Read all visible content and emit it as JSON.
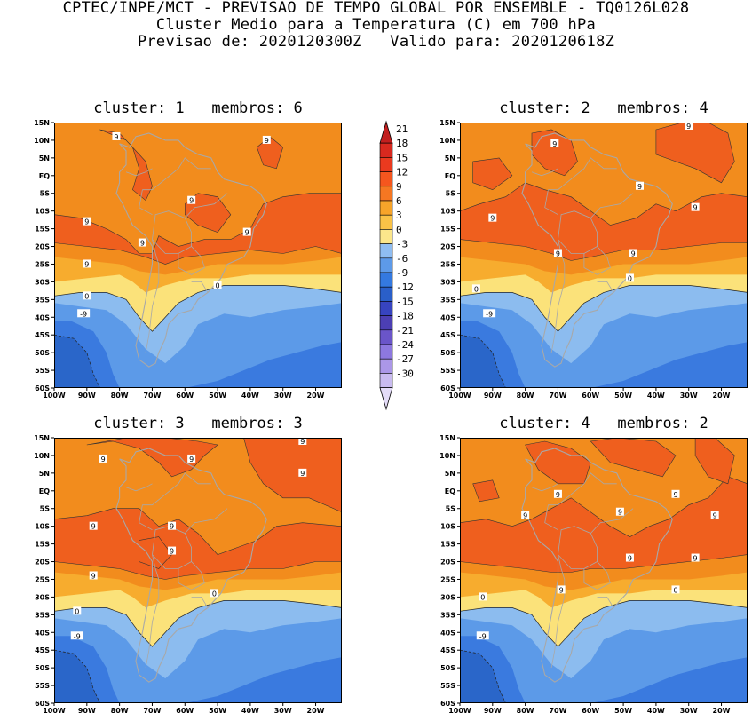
{
  "header": {
    "line1": "CPTEC/INPE/MCT - PREVISAO DE TEMPO GLOBAL POR ENSEMBLE - TQ0126L028",
    "line2": "Cluster Medio para a Temperatura (C) em 700 hPa",
    "line3": "Previsao de: 2020120300Z   Valido para: 2020120618Z"
  },
  "axes": {
    "lon_ticks": [
      "100W",
      "90W",
      "80W",
      "70W",
      "60W",
      "50W",
      "40W",
      "30W",
      "20W"
    ],
    "lat_ticks": [
      "15N",
      "10N",
      "5N",
      "EQ",
      "5S",
      "10S",
      "15S",
      "20S",
      "25S",
      "30S",
      "35S",
      "40S",
      "45S",
      "50S",
      "55S",
      "60S"
    ]
  },
  "colorbar": {
    "labels": [
      "21",
      "18",
      "15",
      "12",
      "9",
      "6",
      "3",
      "0",
      "-3",
      "-6",
      "-9",
      "-12",
      "-15",
      "-18",
      "-21",
      "-24",
      "-27",
      "-30"
    ],
    "colors": [
      "#c21f1f",
      "#d8291f",
      "#ea3a1f",
      "#f5561e",
      "#f57722",
      "#f7a42a",
      "#f9c247",
      "#fbe68b",
      "#8fbdf2",
      "#5d9ae9",
      "#3479e0",
      "#2a5fc9",
      "#3744c0",
      "#4c3fb3",
      "#6a55c9",
      "#8d78df",
      "#ab97e8",
      "#c9bbf0",
      "#e4dcf8"
    ],
    "level_colors": {
      "gt9": "#ef5f1e",
      "6_9": "#f28c1d",
      "3_6": "#f7ac2e",
      "0_3": "#fbe27a",
      "m3_0": "#8cbcef",
      "m6_m3": "#5c9ae8",
      "m9_m6": "#3a7adf",
      "lt_m9": "#2a66c9"
    }
  },
  "panels": [
    {
      "title": "cluster: 1   membros: 6",
      "labels": [
        {
          "text": "9",
          "lon": -81,
          "lat": 11
        },
        {
          "text": "9",
          "lon": -35,
          "lat": 10
        },
        {
          "text": "9",
          "lon": -58,
          "lat": -7
        },
        {
          "text": "9",
          "lon": -90,
          "lat": -13
        },
        {
          "text": "9",
          "lon": -73,
          "lat": -19
        },
        {
          "text": "9",
          "lon": -41,
          "lat": -16
        },
        {
          "text": "9",
          "lon": -90,
          "lat": -25
        },
        {
          "text": "0",
          "lon": -90,
          "lat": -34
        },
        {
          "text": "0",
          "lon": -50,
          "lat": -31
        },
        {
          "text": "-9",
          "lon": -91,
          "lat": -39
        }
      ]
    },
    {
      "title": "cluster: 2   membros: 4",
      "labels": [
        {
          "text": "9",
          "lon": -30,
          "lat": 14
        },
        {
          "text": "9",
          "lon": -71,
          "lat": 9
        },
        {
          "text": "9",
          "lon": -45,
          "lat": -3
        },
        {
          "text": "9",
          "lon": -28,
          "lat": -9
        },
        {
          "text": "9",
          "lon": -90,
          "lat": -12
        },
        {
          "text": "9",
          "lon": -70,
          "lat": -22
        },
        {
          "text": "9",
          "lon": -47,
          "lat": -22
        },
        {
          "text": "0",
          "lon": -48,
          "lat": -29
        },
        {
          "text": "0",
          "lon": -95,
          "lat": -32
        },
        {
          "text": "-9",
          "lon": -91,
          "lat": -39
        }
      ]
    },
    {
      "title": "cluster: 3   membros: 3",
      "labels": [
        {
          "text": "9",
          "lon": -85,
          "lat": 9
        },
        {
          "text": "9",
          "lon": -58,
          "lat": 9
        },
        {
          "text": "9",
          "lon": -24,
          "lat": 14
        },
        {
          "text": "9",
          "lon": -24,
          "lat": 5
        },
        {
          "text": "9",
          "lon": -88,
          "lat": -10
        },
        {
          "text": "9",
          "lon": -64,
          "lat": -10
        },
        {
          "text": "9",
          "lon": -64,
          "lat": -17
        },
        {
          "text": "9",
          "lon": -88,
          "lat": -24
        },
        {
          "text": "0",
          "lon": -51,
          "lat": -29
        },
        {
          "text": "0",
          "lon": -93,
          "lat": -34
        },
        {
          "text": "-9",
          "lon": -93,
          "lat": -41
        }
      ]
    },
    {
      "title": "cluster: 4   membros: 2",
      "labels": [
        {
          "text": "9",
          "lon": -70,
          "lat": -1
        },
        {
          "text": "9",
          "lon": -34,
          "lat": -1
        },
        {
          "text": "9",
          "lon": -80,
          "lat": -7
        },
        {
          "text": "9",
          "lon": -51,
          "lat": -6
        },
        {
          "text": "9",
          "lon": -22,
          "lat": -7
        },
        {
          "text": "9",
          "lon": -48,
          "lat": -19
        },
        {
          "text": "9",
          "lon": -28,
          "lat": -19
        },
        {
          "text": "9",
          "lon": -69,
          "lat": -28
        },
        {
          "text": "0",
          "lon": -34,
          "lat": -28
        },
        {
          "text": "0",
          "lon": -93,
          "lat": -30
        },
        {
          "text": "-9",
          "lon": -93,
          "lat": -41
        }
      ]
    }
  ]
}
